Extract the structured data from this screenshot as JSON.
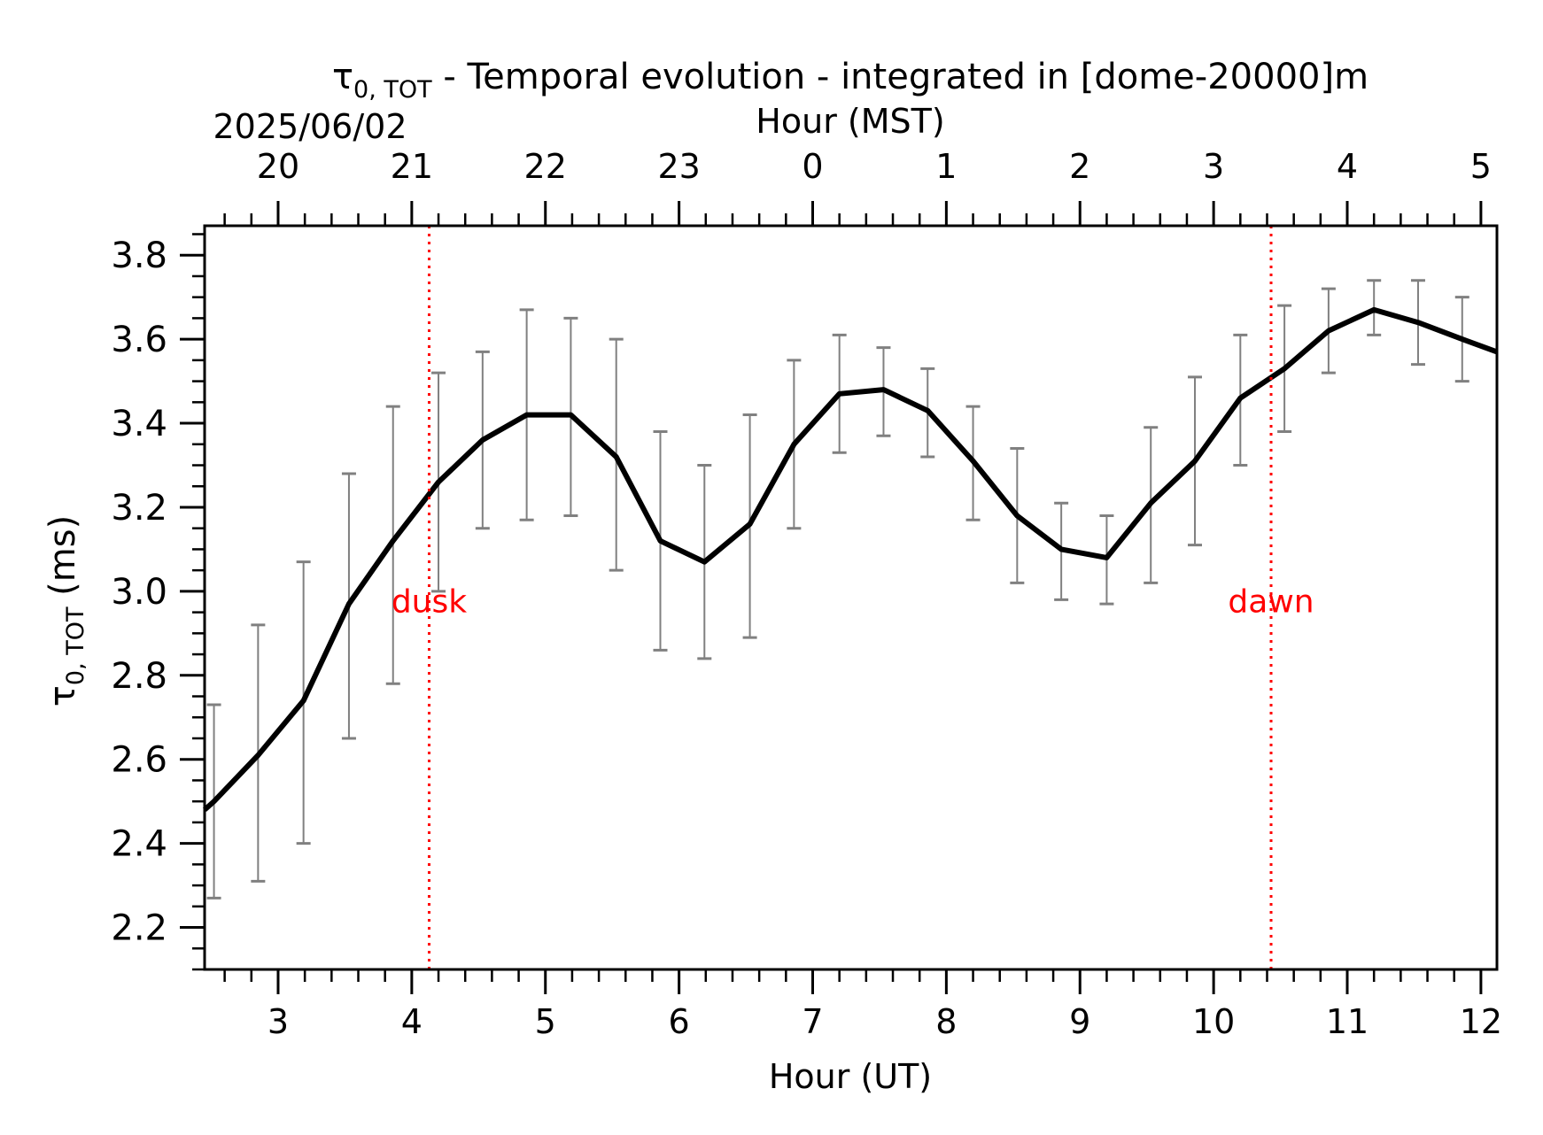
{
  "chart_data": {
    "type": "line",
    "title_symbol": "τ",
    "title_subscript": "0, TOT",
    "title_rest": " - Temporal evolution - integrated in [dome-20000]m",
    "date_label": "2025/06/02",
    "xlabel": "Hour (UT)",
    "xlabel_top": "Hour (MST)",
    "ylabel_symbol": "τ",
    "ylabel_subscript": "0, TOT",
    "ylabel_rest": " (ms)",
    "xlim": [
      2.45,
      12.12
    ],
    "ylim": [
      2.1,
      3.87
    ],
    "x_ticks": [
      3,
      4,
      5,
      6,
      7,
      8,
      9,
      10,
      11,
      12
    ],
    "x_tick_labels": [
      "3",
      "4",
      "5",
      "6",
      "7",
      "8",
      "9",
      "10",
      "11",
      "12"
    ],
    "top_ticks_ut": [
      2.0,
      3.0,
      4.0,
      5.0,
      6.0,
      7.0,
      8.0,
      9.0,
      10.0,
      11.0,
      12.0
    ],
    "top_tick_labels": [
      "20",
      "21",
      "22",
      "23",
      "0",
      "1",
      "2",
      "3",
      "4",
      "5"
    ],
    "top_tick_values_ut": [
      3,
      4,
      5,
      6,
      7,
      8,
      9,
      10,
      11,
      12
    ],
    "y_ticks": [
      2.2,
      2.4,
      2.6,
      2.8,
      3.0,
      3.2,
      3.4,
      3.6,
      3.8
    ],
    "y_tick_labels": [
      "2.2",
      "2.4",
      "2.6",
      "2.8",
      "3.0",
      "3.2",
      "3.4",
      "3.6",
      "3.8"
    ],
    "series": [
      {
        "x": [
          2.45,
          2.52,
          2.85,
          3.19,
          3.53,
          3.86,
          4.2,
          4.53,
          4.86,
          5.19,
          5.53,
          5.86,
          6.19,
          6.53,
          6.86,
          7.2,
          7.53,
          7.86,
          8.2,
          8.53,
          8.86,
          9.2,
          9.53,
          9.86,
          10.2,
          10.53,
          10.86,
          11.2,
          11.53,
          11.86,
          12.12
        ],
        "y": [
          2.48,
          2.5,
          2.61,
          2.74,
          2.97,
          3.12,
          3.26,
          3.36,
          3.42,
          3.42,
          3.32,
          3.12,
          3.07,
          3.16,
          3.35,
          3.47,
          3.48,
          3.43,
          3.31,
          3.18,
          3.1,
          3.08,
          3.21,
          3.31,
          3.46,
          3.53,
          3.62,
          3.67,
          3.64,
          3.6,
          3.57
        ]
      }
    ],
    "errorbars": {
      "x": [
        2.52,
        2.85,
        3.19,
        3.53,
        3.86,
        4.2,
        4.53,
        4.86,
        5.19,
        5.53,
        5.86,
        6.19,
        6.53,
        6.86,
        7.2,
        7.53,
        7.86,
        8.2,
        8.53,
        8.86,
        9.2,
        9.53,
        9.86,
        10.2,
        10.53,
        10.86,
        11.2,
        11.53,
        11.86
      ],
      "low": [
        2.27,
        2.31,
        2.4,
        2.65,
        2.78,
        3.0,
        3.15,
        3.17,
        3.18,
        3.05,
        2.86,
        2.84,
        2.89,
        3.15,
        3.33,
        3.37,
        3.32,
        3.17,
        3.02,
        2.98,
        2.97,
        3.02,
        3.11,
        3.3,
        3.38,
        3.52,
        3.61,
        3.54,
        3.5
      ],
      "high": [
        2.73,
        2.92,
        3.07,
        3.28,
        3.44,
        3.52,
        3.57,
        3.67,
        3.65,
        3.6,
        3.38,
        3.3,
        3.42,
        3.55,
        3.61,
        3.58,
        3.53,
        3.44,
        3.34,
        3.21,
        3.18,
        3.39,
        3.51,
        3.61,
        3.68,
        3.72,
        3.74,
        3.74,
        3.7
      ]
    },
    "annotations": [
      {
        "label": "dusk",
        "x": 4.13
      },
      {
        "label": "dawn",
        "x": 10.43
      }
    ],
    "colors": {
      "line": "#000000",
      "errorbar": "#808080",
      "annotation": "#ff0000",
      "axis": "#000000"
    },
    "grid": false
  }
}
